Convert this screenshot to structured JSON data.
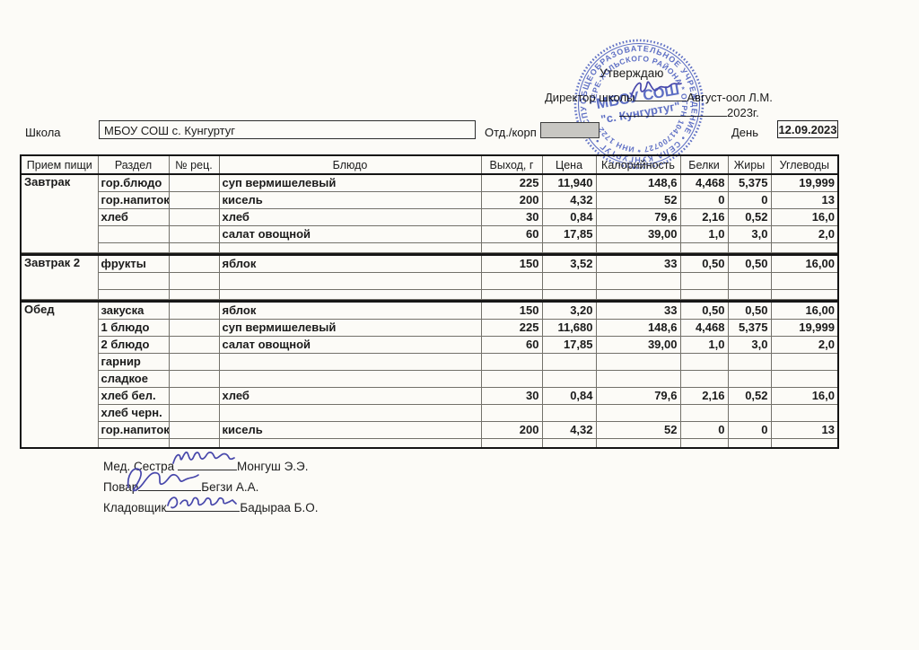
{
  "colors": {
    "stamp_blue": "#3c52c0",
    "ink_blue": "#4747ab",
    "paper": "#fcfbf7"
  },
  "header": {
    "approve": "Утверждаю",
    "director_label": "Директор школы",
    "director_name": "Август-оол Л.М.",
    "year": "2023г.",
    "school_label": "Школа",
    "school_value": "МБОУ СОШ с. Кунгуртуг",
    "dept_label": "Отд./корп",
    "day_label": "День",
    "day_value": "12.09.2023"
  },
  "stamp": {
    "center_line1": "МБОУ СОШ",
    "center_line2": "\"с. Кунгуртуг\"",
    "ring_outer": "ОБЩЕОБРАЗОВАТЕЛЬНОЕ УЧРЕЖДЕНИЕ • СЕЛА КУНГУРТУГ • РЕСПУБЛИКИ ТЫВА",
    "ring_inner": "ТЕРЕ-ХОЛЬСКОГО РАЙОНА * ОГРН 1041700727 * ИНН 1722"
  },
  "table": {
    "headers": [
      "Прием пищи",
      "Раздел",
      "№ рец.",
      "Блюдо",
      "Выход, г",
      "Цена",
      "Калорийность",
      "Белки",
      "Жиры",
      "Углеводы"
    ],
    "sections": [
      {
        "meal": "Завтрак",
        "rows": [
          {
            "razdel": "гор.блюдо",
            "rec": "",
            "dish": "суп вермишелевый",
            "vyhod": "225",
            "cena": "11,940",
            "kal": "148,6",
            "belki": "4,468",
            "zhiry": "5,375",
            "uglevody": "19,999",
            "short": false
          },
          {
            "razdel": "гор.напиток",
            "rec": "",
            "dish": "кисель",
            "vyhod": "200",
            "cena": "4,32",
            "kal": "52",
            "belki": "0",
            "zhiry": "0",
            "uglevody": "13",
            "short": false
          },
          {
            "razdel": "хлеб",
            "rec": "",
            "dish": "хлеб",
            "vyhod": "30",
            "cena": "0,84",
            "kal": "79,6",
            "belki": "2,16",
            "zhiry": "0,52",
            "uglevody": "16,0",
            "short": false
          },
          {
            "razdel": "",
            "rec": "",
            "dish": "салат овощной",
            "vyhod": "60",
            "cena": "17,85",
            "kal": "39,00",
            "belki": "1,0",
            "zhiry": "3,0",
            "uglevody": "2,0",
            "short": false
          },
          {
            "razdel": "",
            "rec": "",
            "dish": "",
            "vyhod": "",
            "cena": "",
            "kal": "",
            "belki": "",
            "zhiry": "",
            "uglevody": "",
            "short": true
          }
        ]
      },
      {
        "meal": "Завтрак 2",
        "rows": [
          {
            "razdel": "фрукты",
            "rec": "",
            "dish": "яблок",
            "vyhod": "150",
            "cena": "3,52",
            "kal": "33",
            "belki": "0,50",
            "zhiry": "0,50",
            "uglevody": "16,00",
            "short": false
          },
          {
            "razdel": "",
            "rec": "",
            "dish": "",
            "vyhod": "",
            "cena": "",
            "kal": "",
            "belki": "",
            "zhiry": "",
            "uglevody": "",
            "short": false
          },
          {
            "razdel": "",
            "rec": "",
            "dish": "",
            "vyhod": "",
            "cena": "",
            "kal": "",
            "belki": "",
            "zhiry": "",
            "uglevody": "",
            "short": true
          }
        ]
      },
      {
        "meal": "Обед",
        "rows": [
          {
            "razdel": "закуска",
            "rec": "",
            "dish": "яблок",
            "vyhod": "150",
            "cena": "3,20",
            "kal": "33",
            "belki": "0,50",
            "zhiry": "0,50",
            "uglevody": "16,00",
            "short": false
          },
          {
            "razdel": "1 блюдо",
            "rec": "",
            "dish": "суп вермишелевый",
            "vyhod": "225",
            "cena": "11,680",
            "kal": "148,6",
            "belki": "4,468",
            "zhiry": "5,375",
            "uglevody": "19,999",
            "short": false
          },
          {
            "razdel": "2 блюдо",
            "rec": "",
            "dish": "салат овощной",
            "vyhod": "60",
            "cena": "17,85",
            "kal": "39,00",
            "belki": "1,0",
            "zhiry": "3,0",
            "uglevody": "2,0",
            "short": false
          },
          {
            "razdel": "гарнир",
            "rec": "",
            "dish": "",
            "vyhod": "",
            "cena": "",
            "kal": "",
            "belki": "",
            "zhiry": "",
            "uglevody": "",
            "short": false
          },
          {
            "razdel": "сладкое",
            "rec": "",
            "dish": "",
            "vyhod": "",
            "cena": "",
            "kal": "",
            "belki": "",
            "zhiry": "",
            "uglevody": "",
            "short": false
          },
          {
            "razdel": "хлеб бел.",
            "rec": "",
            "dish": "хлеб",
            "vyhod": "30",
            "cena": "0,84",
            "kal": "79,6",
            "belki": "2,16",
            "zhiry": "0,52",
            "uglevody": "16,0",
            "short": false
          },
          {
            "razdel": "хлеб черн.",
            "rec": "",
            "dish": "",
            "vyhod": "",
            "cena": "",
            "kal": "",
            "belki": "",
            "zhiry": "",
            "uglevody": "",
            "short": false
          },
          {
            "razdel": "гор.напиток",
            "rec": "",
            "dish": "кисель",
            "vyhod": "200",
            "cena": "4,32",
            "kal": "52",
            "belki": "0",
            "zhiry": "0",
            "uglevody": "13",
            "short": false
          },
          {
            "razdel": "",
            "rec": "",
            "dish": "",
            "vyhod": "",
            "cena": "",
            "kal": "",
            "belki": "",
            "zhiry": "",
            "uglevody": "",
            "short": true
          }
        ]
      }
    ]
  },
  "signatures": [
    {
      "role": "Мед. Сестра",
      "name": "Монгуш Э.Э."
    },
    {
      "role": "Повар",
      "name": "Бегзи А.А."
    },
    {
      "role": "Кладовщик",
      "name": "Бадыраа Б.О."
    }
  ]
}
